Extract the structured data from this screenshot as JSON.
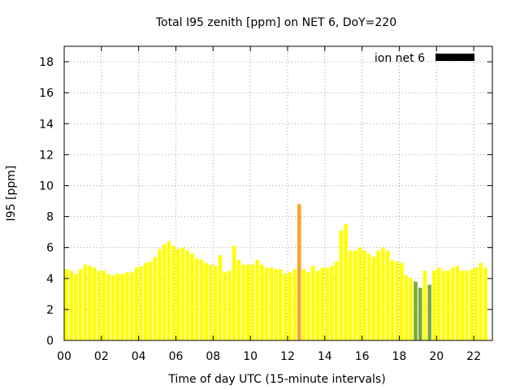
{
  "chart_data": {
    "type": "bar",
    "title": "Total I95 zenith [ppm] on NET 6, DoY=220",
    "xlabel": "Time of day UTC (15-minute intervals)",
    "ylabel": "I95 [ppm]",
    "xlim": [
      0,
      23
    ],
    "ylim": [
      0,
      19
    ],
    "xticks": [
      0,
      2,
      4,
      6,
      8,
      10,
      12,
      14,
      16,
      18,
      20,
      22
    ],
    "xtick_labels": [
      "00",
      "02",
      "04",
      "06",
      "08",
      "10",
      "12",
      "14",
      "16",
      "18",
      "20",
      "22"
    ],
    "yticks": [
      0,
      2,
      4,
      6,
      8,
      10,
      12,
      14,
      16,
      18
    ],
    "ytick_labels": [
      "0",
      "2",
      "4",
      "6",
      "8",
      "10",
      "12",
      "14",
      "16",
      "18"
    ],
    "grid": true,
    "legend": {
      "position": "top-right",
      "entries": [
        {
          "label": "ion net 6",
          "color": "#000000"
        }
      ]
    },
    "bar_width_hours": 0.2,
    "colors": {
      "yellow": "#ffff00",
      "orange": "#f5a623",
      "green": "#7aaa3a"
    },
    "series": [
      {
        "x": [
          0.125,
          0.375,
          0.625,
          0.875,
          1.125,
          1.375,
          1.625,
          1.875,
          2.125,
          2.375,
          2.625,
          2.875,
          3.125,
          3.375,
          3.625,
          3.875,
          4.125,
          4.375,
          4.625,
          4.875,
          5.125,
          5.375,
          5.625,
          5.875,
          6.125,
          6.375,
          6.625,
          6.875,
          7.125,
          7.375,
          7.625,
          7.875,
          8.125,
          8.375,
          8.625,
          8.875,
          9.125,
          9.375,
          9.625,
          9.875,
          10.125,
          10.375,
          10.625,
          10.875,
          11.125,
          11.375,
          11.625,
          11.875,
          12.125,
          12.375,
          12.625,
          12.875,
          13.125,
          13.375,
          13.625,
          13.875,
          14.125,
          14.375,
          14.625,
          14.875,
          15.125,
          15.375,
          15.625,
          15.875,
          16.125,
          16.375,
          16.625,
          16.875,
          17.125,
          17.375,
          17.625,
          17.875,
          18.125,
          18.375,
          18.625,
          18.875,
          19.125,
          19.375,
          19.625,
          19.875,
          20.125,
          20.375,
          20.625,
          20.875,
          21.125,
          21.375,
          21.625,
          21.875,
          22.125,
          22.375,
          22.625
        ],
        "values": [
          4.6,
          4.5,
          4.3,
          4.6,
          4.9,
          4.8,
          4.7,
          4.5,
          4.5,
          4.3,
          4.2,
          4.3,
          4.3,
          4.4,
          4.4,
          4.7,
          4.8,
          5.0,
          5.1,
          5.4,
          5.9,
          6.2,
          6.4,
          6.1,
          5.9,
          6.0,
          5.8,
          5.6,
          5.3,
          5.2,
          5.0,
          4.9,
          4.8,
          5.5,
          4.4,
          4.5,
          6.1,
          5.2,
          4.9,
          4.9,
          4.9,
          5.2,
          4.9,
          4.7,
          4.7,
          4.6,
          4.6,
          4.3,
          4.4,
          4.6,
          8.8,
          4.6,
          4.4,
          4.8,
          4.5,
          4.7,
          4.7,
          4.8,
          5.1,
          7.1,
          7.5,
          5.8,
          5.8,
          6.0,
          5.8,
          5.6,
          5.4,
          5.8,
          6.0,
          5.8,
          5.2,
          5.1,
          5.0,
          4.2,
          4.0,
          3.8,
          3.4,
          4.5,
          3.6,
          4.5,
          4.7,
          4.5,
          4.5,
          4.7,
          4.8,
          4.5,
          4.5,
          4.6,
          4.7,
          5.0,
          4.7
        ],
        "colors": [
          "yellow",
          "yellow",
          "yellow",
          "yellow",
          "yellow",
          "yellow",
          "yellow",
          "yellow",
          "yellow",
          "yellow",
          "yellow",
          "yellow",
          "yellow",
          "yellow",
          "yellow",
          "yellow",
          "yellow",
          "yellow",
          "yellow",
          "yellow",
          "yellow",
          "yellow",
          "yellow",
          "yellow",
          "yellow",
          "yellow",
          "yellow",
          "yellow",
          "yellow",
          "yellow",
          "yellow",
          "yellow",
          "yellow",
          "yellow",
          "yellow",
          "yellow",
          "yellow",
          "yellow",
          "yellow",
          "yellow",
          "yellow",
          "yellow",
          "yellow",
          "yellow",
          "yellow",
          "yellow",
          "yellow",
          "yellow",
          "yellow",
          "yellow",
          "orange",
          "yellow",
          "yellow",
          "yellow",
          "yellow",
          "yellow",
          "yellow",
          "yellow",
          "yellow",
          "yellow",
          "yellow",
          "yellow",
          "yellow",
          "yellow",
          "yellow",
          "yellow",
          "yellow",
          "yellow",
          "yellow",
          "yellow",
          "yellow",
          "yellow",
          "yellow",
          "yellow",
          "yellow",
          "green",
          "green",
          "yellow",
          "green",
          "yellow",
          "yellow",
          "yellow",
          "yellow",
          "yellow",
          "yellow",
          "yellow",
          "yellow",
          "yellow",
          "yellow",
          "yellow",
          "yellow"
        ]
      }
    ]
  }
}
